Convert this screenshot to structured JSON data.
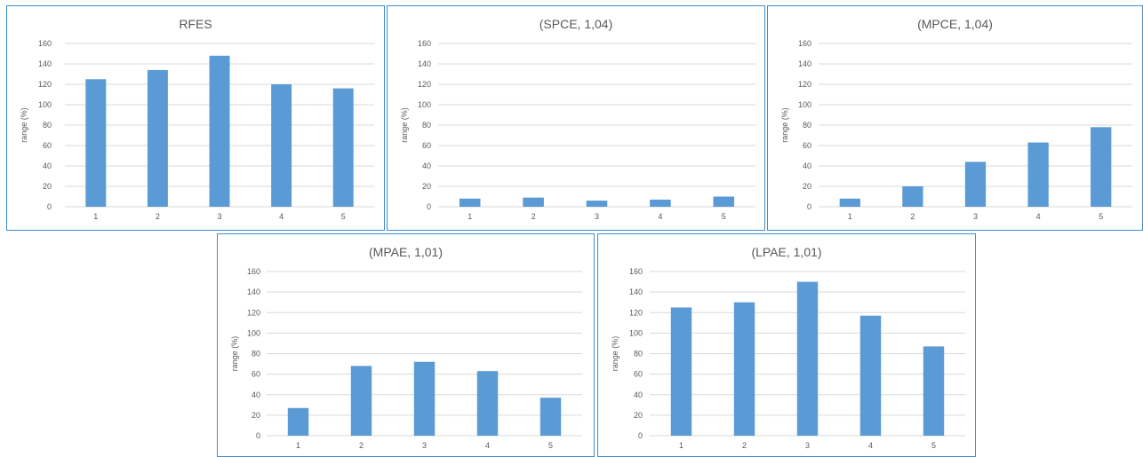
{
  "colors": {
    "bar": "#5b9bd5",
    "border": "#3f8fcf",
    "grid": "#d9d9d9",
    "text": "#595959"
  },
  "chart_data": [
    {
      "type": "bar",
      "title": "RFES",
      "xlabel": "",
      "ylabel": "range (%)",
      "categories": [
        "1",
        "2",
        "3",
        "4",
        "5"
      ],
      "values": [
        125,
        134,
        148,
        120,
        116
      ],
      "ylim": [
        0,
        160
      ],
      "yticks": [
        "0",
        "20",
        "40",
        "60",
        "80",
        "100",
        "120",
        "140",
        "160"
      ],
      "grid": true
    },
    {
      "type": "bar",
      "title": "(SPCE, 1,04)",
      "xlabel": "",
      "ylabel": "range (%)",
      "categories": [
        "1",
        "2",
        "3",
        "4",
        "5"
      ],
      "values": [
        8,
        9,
        6,
        7,
        10
      ],
      "ylim": [
        0,
        160
      ],
      "yticks": [
        "0",
        "20",
        "40",
        "60",
        "80",
        "100",
        "120",
        "140",
        "160"
      ],
      "grid": true
    },
    {
      "type": "bar",
      "title": "(MPCE, 1,04)",
      "xlabel": "",
      "ylabel": "range (%)",
      "categories": [
        "1",
        "2",
        "3",
        "4",
        "5"
      ],
      "values": [
        8,
        20,
        44,
        63,
        78
      ],
      "ylim": [
        0,
        160
      ],
      "yticks": [
        "0",
        "20",
        "40",
        "60",
        "80",
        "100",
        "120",
        "140",
        "160"
      ],
      "grid": true
    },
    {
      "type": "bar",
      "title": "(MPAE, 1,01)",
      "xlabel": "",
      "ylabel": "range (%)",
      "categories": [
        "1",
        "2",
        "3",
        "4",
        "5"
      ],
      "values": [
        27,
        68,
        72,
        63,
        37
      ],
      "ylim": [
        0,
        160
      ],
      "yticks": [
        "0",
        "20",
        "40",
        "60",
        "80",
        "100",
        "120",
        "140",
        "160"
      ],
      "grid": true
    },
    {
      "type": "bar",
      "title": "(LPAE, 1,01)",
      "xlabel": "",
      "ylabel": "range (%)",
      "categories": [
        "1",
        "2",
        "3",
        "4",
        "5"
      ],
      "values": [
        125,
        130,
        150,
        117,
        87
      ],
      "ylim": [
        0,
        160
      ],
      "yticks": [
        "0",
        "20",
        "40",
        "60",
        "80",
        "100",
        "120",
        "140",
        "160"
      ],
      "grid": true
    }
  ]
}
